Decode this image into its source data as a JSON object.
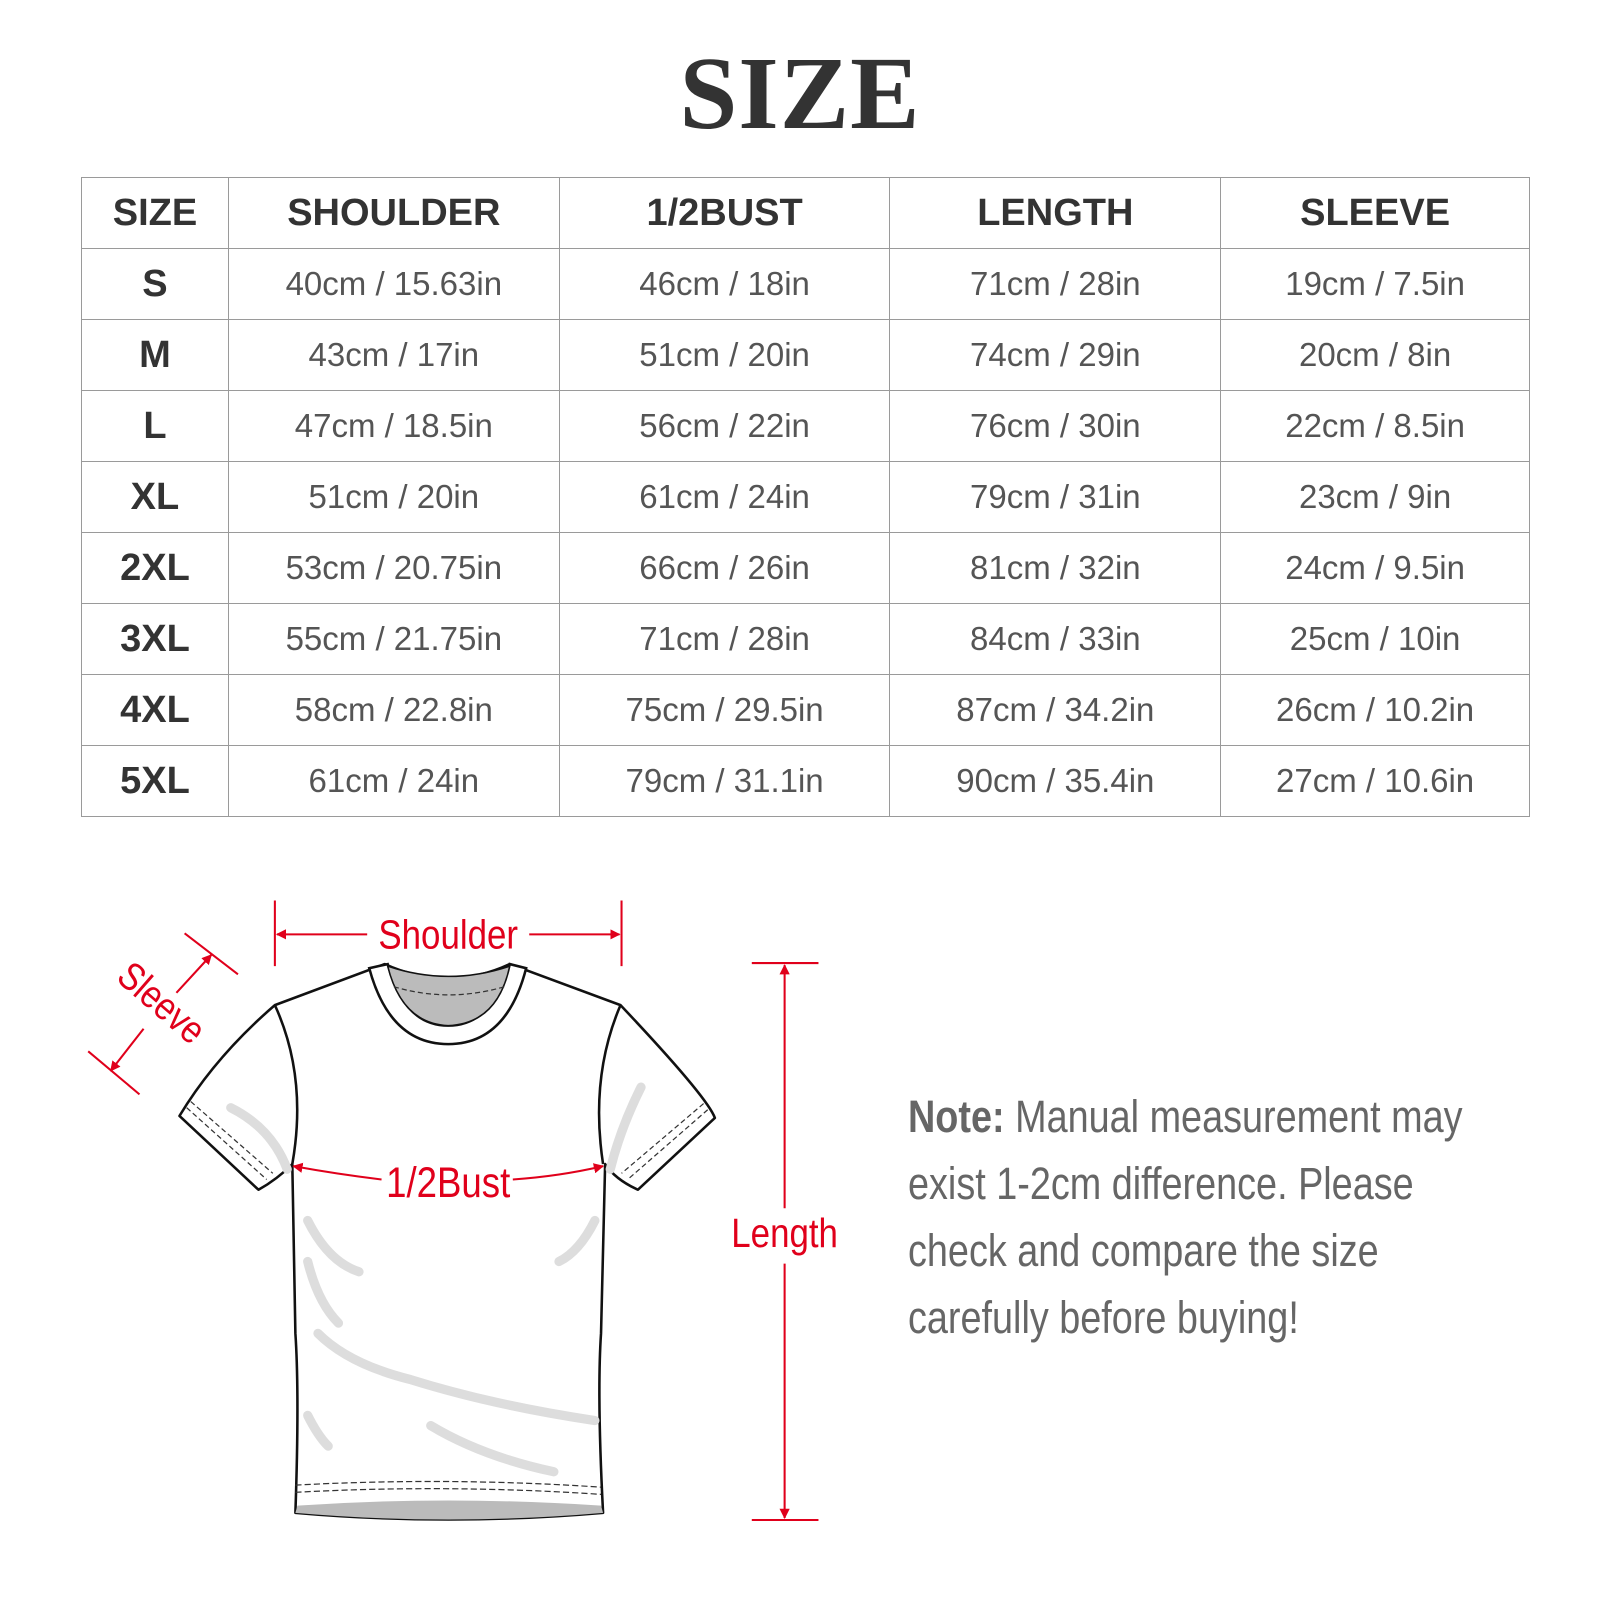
{
  "title": "SIZE",
  "table": {
    "headers": [
      "SIZE",
      "SHOULDER",
      "1/2BUST",
      "LENGTH",
      "SLEEVE"
    ],
    "rows": [
      [
        "S",
        "40cm / 15.63in",
        "46cm / 18in",
        "71cm / 28in",
        "19cm / 7.5in"
      ],
      [
        "M",
        "43cm / 17in",
        "51cm / 20in",
        "74cm / 29in",
        "20cm / 8in"
      ],
      [
        "L",
        "47cm / 18.5in",
        "56cm / 22in",
        "76cm / 30in",
        "22cm / 8.5in"
      ],
      [
        "XL",
        "51cm / 20in",
        "61cm / 24in",
        "79cm / 31in",
        "23cm / 9in"
      ],
      [
        "2XL",
        "53cm / 20.75in",
        "66cm / 26in",
        "81cm / 32in",
        "24cm / 9.5in"
      ],
      [
        "3XL",
        "55cm / 21.75in",
        "71cm / 28in",
        "84cm / 33in",
        "25cm / 10in"
      ],
      [
        "4XL",
        "58cm / 22.8in",
        "75cm / 29.5in",
        "87cm / 34.2in",
        "26cm / 10.2in"
      ],
      [
        "5XL",
        "61cm / 24in",
        "79cm / 31.1in",
        "90cm / 35.4in",
        "27cm / 10.6in"
      ]
    ]
  },
  "diagram": {
    "shoulder_label": "Shoulder",
    "sleeve_label": "Sleeve",
    "bust_label": "1/2Bust",
    "length_label": "Length",
    "accent_color": "#e0001b"
  },
  "note": {
    "label": "Note:",
    "text": " Manual measurement may exist 1-2cm difference. Please check and compare the size carefully before buying!"
  }
}
